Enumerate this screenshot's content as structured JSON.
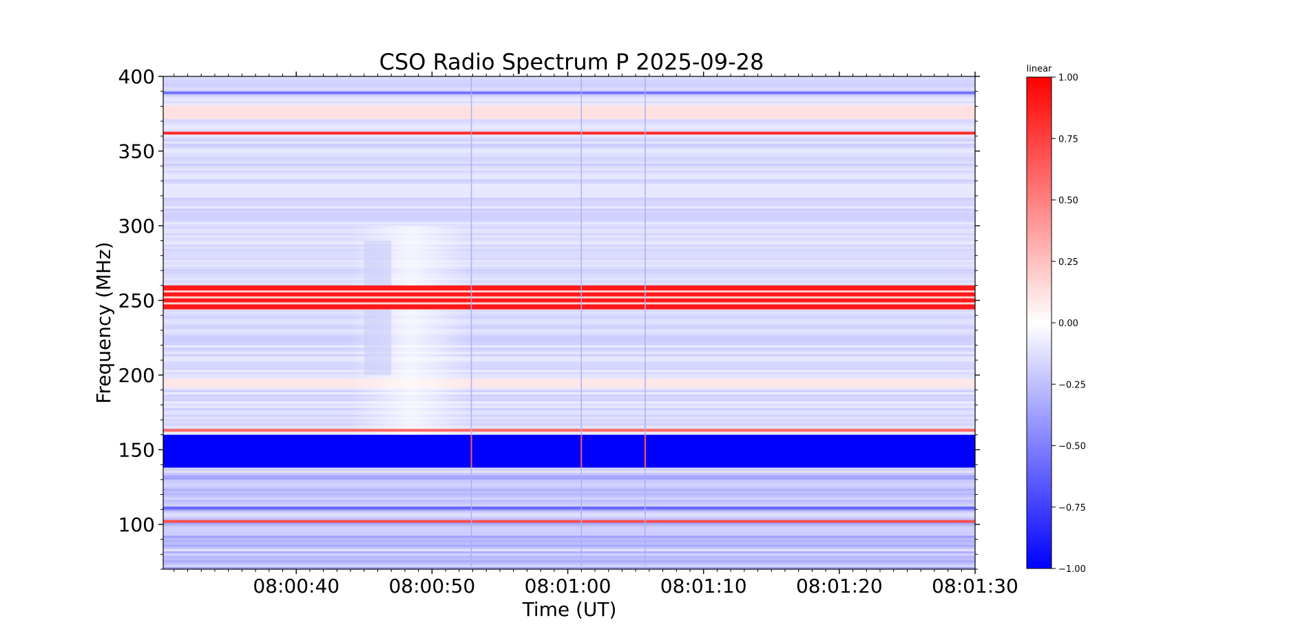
{
  "chart_data": {
    "type": "heatmap",
    "title": "CSO Radio Spectrum P 2025-09-28",
    "xlabel": "Time (UT)",
    "ylabel": "Frequency (MHz)",
    "x_ticks": [
      "08:00:40",
      "08:00:50",
      "08:01:00",
      "08:01:10",
      "08:01:20",
      "08:01:30"
    ],
    "x_tick_seconds": [
      40,
      50,
      60,
      70,
      80,
      90
    ],
    "x_range_seconds": [
      30.2,
      90.0
    ],
    "y_ticks": [
      100,
      150,
      200,
      250,
      300,
      350,
      400
    ],
    "y_range": [
      70,
      400
    ],
    "colorbar": {
      "label": "linear",
      "ticks": [
        "1.00",
        "0.75",
        "0.50",
        "0.25",
        "0.00",
        "−0.25",
        "−0.50",
        "−0.75",
        "−1.00"
      ],
      "range": [
        -1.0,
        1.0
      ],
      "cmap": "bwr",
      "colors": {
        "low": "#0000ff",
        "mid": "#ffffff",
        "high": "#ff0000"
      }
    },
    "features": {
      "saturated_bands": [
        {
          "freq_range": [
            138,
            160
          ],
          "value": -1.0
        },
        {
          "freq_range": [
            244,
            260
          ],
          "value": 0.9
        }
      ],
      "strong_lines": [
        {
          "freq": 362,
          "value": 0.85
        },
        {
          "freq": 163,
          "value": 0.6
        },
        {
          "freq": 102,
          "value": 0.7
        },
        {
          "freq": 111,
          "value": -0.6
        },
        {
          "freq": 389,
          "value": -0.55
        }
      ],
      "burst_time_range_seconds": [
        44,
        53
      ],
      "vertical_spikes_seconds": [
        52.9,
        61.0,
        65.7
      ]
    }
  }
}
